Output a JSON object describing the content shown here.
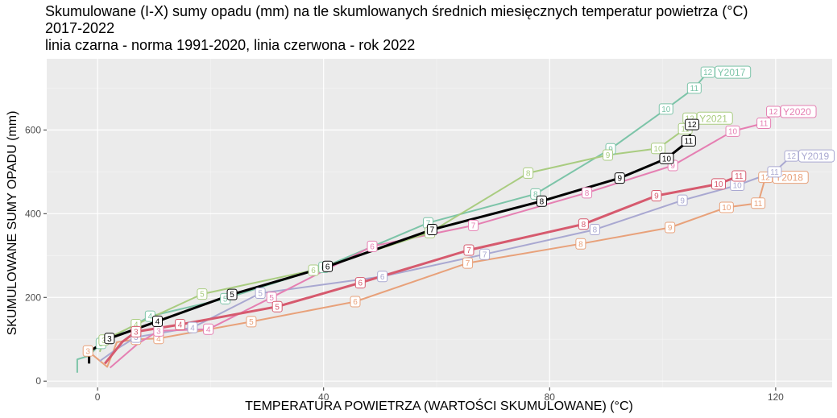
{
  "title": {
    "line1": "Skumulowane (I-X) sumy opadu (mm) na tle skumlowanych średnich miesięcznych temperatur powietrza (°C)",
    "line2": "2017-2022",
    "line3": "linia czarna - norma 1991-2020, linia czerwona - rok 2022"
  },
  "chart_data": {
    "type": "line",
    "xlabel": "TEMPERATURA POWIETRZA (WARTOŚCI SKUMULOWANE) (°C)",
    "ylabel": "SKUMULOWANE SUMY OPADU (mm)",
    "xlim": [
      -9,
      130
    ],
    "ylim": [
      -15,
      770
    ],
    "xticks": [
      0,
      40,
      80,
      120
    ],
    "yticks": [
      0,
      200,
      400,
      600
    ],
    "xtick_labels": [
      "0",
      "40",
      "80",
      "120"
    ],
    "ytick_labels": [
      "0",
      "200",
      "400",
      "600"
    ],
    "grid": true,
    "series": [
      {
        "name": "Y2017",
        "color": "#7cc4a8",
        "width": 2,
        "points": [
          {
            "x": -3.6,
            "y": 20,
            "m": ""
          },
          {
            "x": -3.6,
            "y": 52,
            "m": ""
          },
          {
            "x": -1.6,
            "y": 60,
            "m": ""
          },
          {
            "x": 0.6,
            "y": 90,
            "m": "3"
          },
          {
            "x": 9.3,
            "y": 155,
            "m": "4"
          },
          {
            "x": 22.6,
            "y": 197,
            "m": "5"
          },
          {
            "x": 40,
            "y": 272,
            "m": "6"
          },
          {
            "x": 58.5,
            "y": 378,
            "m": "7"
          },
          {
            "x": 77.5,
            "y": 447,
            "m": "8"
          },
          {
            "x": 90.8,
            "y": 555,
            "m": "9"
          },
          {
            "x": 100.6,
            "y": 650,
            "m": "10"
          },
          {
            "x": 105.6,
            "y": 700,
            "m": "11"
          },
          {
            "x": 108,
            "y": 738,
            "m": "12"
          }
        ],
        "end_label": "Y2017"
      },
      {
        "name": "Y2018",
        "color": "#e8a17a",
        "width": 2,
        "points": [
          {
            "x": -1.7,
            "y": 72,
            "m": "3"
          },
          {
            "x": 1.7,
            "y": 34,
            "m": ""
          },
          {
            "x": 3.4,
            "y": 93,
            "m": ""
          },
          {
            "x": 6.8,
            "y": 100,
            "m": "3"
          },
          {
            "x": 10.8,
            "y": 102,
            "m": "4"
          },
          {
            "x": 27.2,
            "y": 142,
            "m": "5"
          },
          {
            "x": 45.6,
            "y": 190,
            "m": "6"
          },
          {
            "x": 65.5,
            "y": 282,
            "m": "7"
          },
          {
            "x": 85.5,
            "y": 328,
            "m": "8"
          },
          {
            "x": 101.3,
            "y": 367,
            "m": "9"
          },
          {
            "x": 111.3,
            "y": 415,
            "m": "10"
          },
          {
            "x": 116.9,
            "y": 425,
            "m": "11"
          },
          {
            "x": 118.2,
            "y": 487,
            "m": "12"
          }
        ],
        "end_label": "Y2018"
      },
      {
        "name": "Y2019",
        "color": "#a9a8d1",
        "width": 2,
        "points": [
          {
            "x": 0.4,
            "y": 48,
            "m": ""
          },
          {
            "x": 3.2,
            "y": 75,
            "m": ""
          },
          {
            "x": 6.8,
            "y": 105,
            "m": "3"
          },
          {
            "x": 16.8,
            "y": 128,
            "m": "4"
          },
          {
            "x": 28.8,
            "y": 210,
            "m": "5"
          },
          {
            "x": 50.4,
            "y": 250,
            "m": "6"
          },
          {
            "x": 68.5,
            "y": 303,
            "m": "7"
          },
          {
            "x": 88,
            "y": 362,
            "m": "8"
          },
          {
            "x": 103.5,
            "y": 432,
            "m": "9"
          },
          {
            "x": 113.2,
            "y": 468,
            "m": "10"
          },
          {
            "x": 119.8,
            "y": 500,
            "m": "11"
          },
          {
            "x": 122.8,
            "y": 538,
            "m": "12"
          }
        ],
        "end_label": "Y2019"
      },
      {
        "name": "Y2020",
        "color": "#e57fb2",
        "width": 2,
        "points": [
          {
            "x": 2.2,
            "y": 32,
            "m": ""
          },
          {
            "x": 7.2,
            "y": 90,
            "m": ""
          },
          {
            "x": 10.8,
            "y": 120,
            "m": "3"
          },
          {
            "x": 19.6,
            "y": 124,
            "m": "4"
          },
          {
            "x": 30.8,
            "y": 200,
            "m": "5"
          },
          {
            "x": 48.6,
            "y": 322,
            "m": "6"
          },
          {
            "x": 66.5,
            "y": 372,
            "m": "7"
          },
          {
            "x": 86.6,
            "y": 450,
            "m": "8"
          },
          {
            "x": 101.8,
            "y": 515,
            "m": "9"
          },
          {
            "x": 112.4,
            "y": 597,
            "m": "10"
          },
          {
            "x": 117.9,
            "y": 616,
            "m": "11"
          },
          {
            "x": 119.6,
            "y": 644,
            "m": "12"
          }
        ],
        "end_label": "Y2020"
      },
      {
        "name": "Y2021",
        "color": "#a9cc80",
        "width": 2,
        "points": [
          {
            "x": 0.4,
            "y": 70,
            "m": ""
          },
          {
            "x": 1.1,
            "y": 98,
            "m": "3"
          },
          {
            "x": 6.8,
            "y": 135,
            "m": "4"
          },
          {
            "x": 18.5,
            "y": 208,
            "m": "5"
          },
          {
            "x": 38.2,
            "y": 265,
            "m": "6"
          },
          {
            "x": 58.8,
            "y": 355,
            "m": "7"
          },
          {
            "x": 76.2,
            "y": 497,
            "m": "8"
          },
          {
            "x": 90.3,
            "y": 540,
            "m": "9"
          },
          {
            "x": 99.2,
            "y": 556,
            "m": "10"
          },
          {
            "x": 104,
            "y": 603,
            "m": "11"
          },
          {
            "x": 104.8,
            "y": 628,
            "m": "12"
          }
        ],
        "end_label": "Y2021"
      },
      {
        "name": "norma 1991-2020",
        "color": "#000000",
        "width": 3,
        "points": [
          {
            "x": -1.5,
            "y": 42,
            "m": ""
          },
          {
            "x": -1.5,
            "y": 70,
            "m": ""
          },
          {
            "x": 2.1,
            "y": 102,
            "m": "3"
          },
          {
            "x": 10.6,
            "y": 143,
            "m": "4"
          },
          {
            "x": 23.8,
            "y": 207,
            "m": "5"
          },
          {
            "x": 40.7,
            "y": 274,
            "m": "6"
          },
          {
            "x": 59.2,
            "y": 362,
            "m": "7"
          },
          {
            "x": 78.6,
            "y": 430,
            "m": "8"
          },
          {
            "x": 92.4,
            "y": 485,
            "m": "9"
          },
          {
            "x": 100.7,
            "y": 532,
            "m": "10"
          },
          {
            "x": 104.6,
            "y": 574,
            "m": "11"
          },
          {
            "x": 105.2,
            "y": 613,
            "m": "12"
          }
        ],
        "end_label": ""
      },
      {
        "name": "rok 2022",
        "color": "#d65a6e",
        "width": 3,
        "points": [
          {
            "x": 1.3,
            "y": 42,
            "m": ""
          },
          {
            "x": 4.4,
            "y": 94,
            "m": ""
          },
          {
            "x": 6.8,
            "y": 118,
            "m": "3"
          },
          {
            "x": 14.6,
            "y": 135,
            "m": "4"
          },
          {
            "x": 31.8,
            "y": 178,
            "m": "5"
          },
          {
            "x": 46.5,
            "y": 235,
            "m": "6"
          },
          {
            "x": 65.7,
            "y": 313,
            "m": "7"
          },
          {
            "x": 86,
            "y": 375,
            "m": "8"
          },
          {
            "x": 98.9,
            "y": 443,
            "m": "9"
          },
          {
            "x": 109.9,
            "y": 471,
            "m": "10"
          },
          {
            "x": 113.5,
            "y": 490,
            "m": "11"
          }
        ],
        "end_label": ""
      }
    ]
  }
}
